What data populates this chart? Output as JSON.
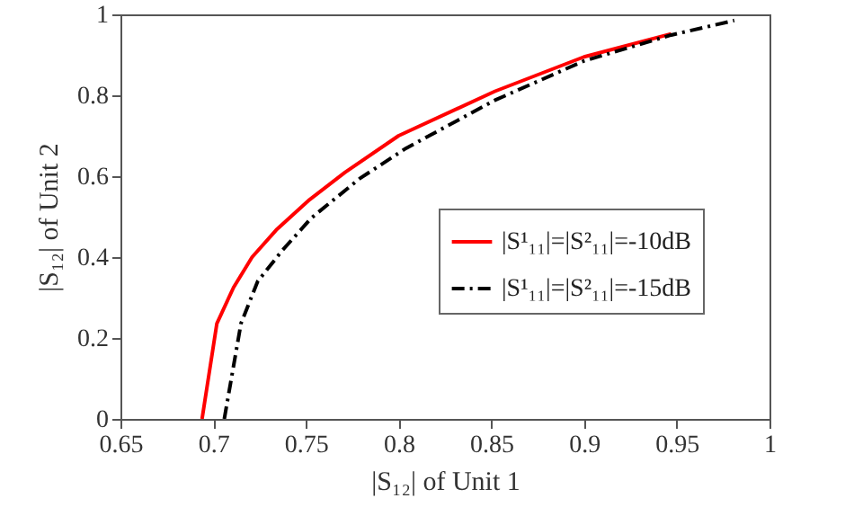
{
  "chart_data": {
    "type": "line",
    "xlabel": "|S₁₂| of Unit 1",
    "ylabel": "|S₁₂| of Unit 2",
    "xlim": [
      0.65,
      1
    ],
    "ylim": [
      0,
      1
    ],
    "xticks": [
      0.65,
      0.7,
      0.75,
      0.8,
      0.85,
      0.9,
      0.95,
      1
    ],
    "yticks": [
      0,
      0.2,
      0.4,
      0.6,
      0.8,
      1
    ],
    "grid": false,
    "legend": "right",
    "marker": "none",
    "series": [
      {
        "name": "|S¹₁₁|=|S²₁₁|=-10dB",
        "color": "#ff0000",
        "line_style": "solid",
        "x": [
          0.694,
          0.702,
          0.711,
          0.721,
          0.734,
          0.752,
          0.771,
          0.8,
          0.852,
          0.9,
          0.947
        ],
        "values": [
          0,
          0.236,
          0.325,
          0.4,
          0.467,
          0.542,
          0.609,
          0.7,
          0.81,
          0.895,
          0.952
        ]
      },
      {
        "name": "|S¹₁₁|=|S²₁₁|=-15dB",
        "color": "#000000",
        "line_style": "dashed",
        "x": [
          0.706,
          0.715,
          0.724,
          0.737,
          0.753,
          0.779,
          0.804,
          0.852,
          0.9,
          0.947,
          0.981
        ],
        "values": [
          0,
          0.236,
          0.34,
          0.415,
          0.497,
          0.594,
          0.669,
          0.788,
          0.885,
          0.949,
          0.985
        ]
      }
    ]
  }
}
